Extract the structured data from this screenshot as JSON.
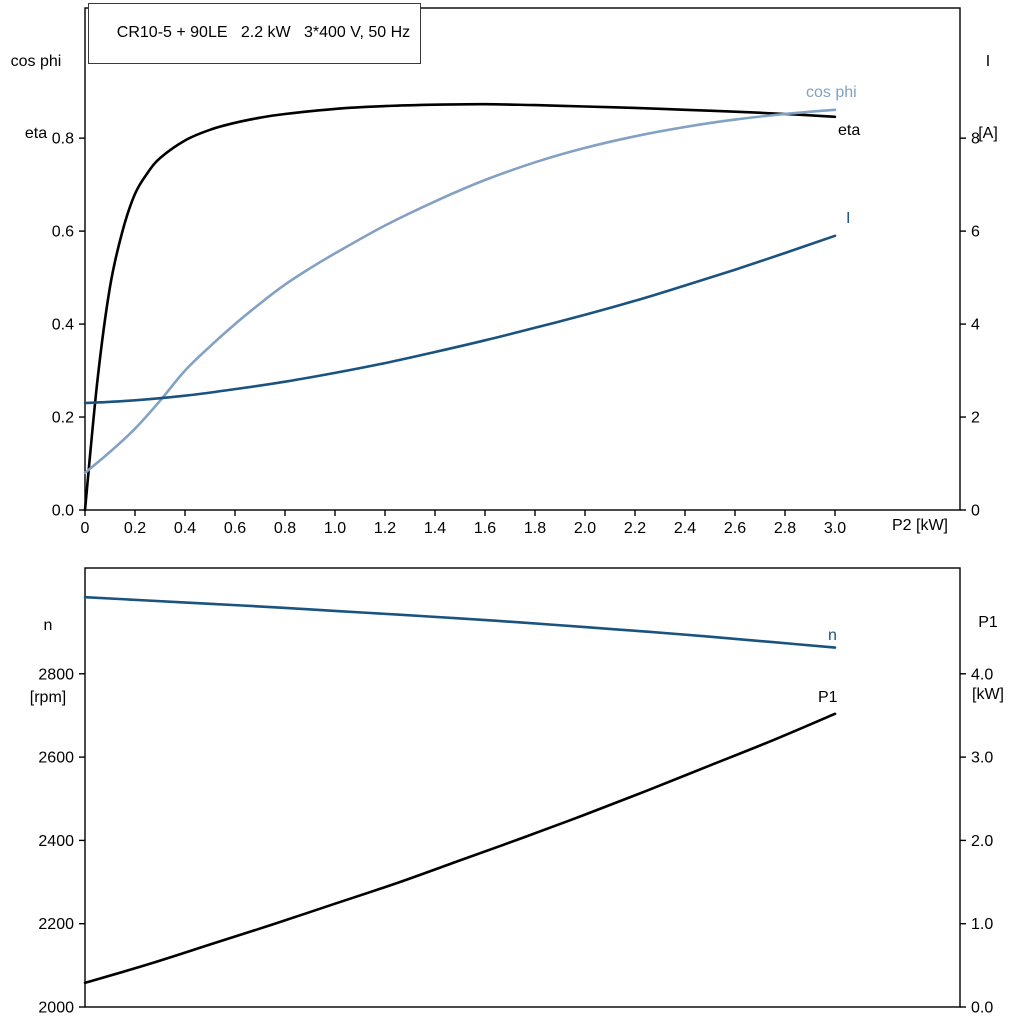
{
  "title": "CR10-5 + 90LE   2.2 kW   3*400 V, 50 Hz",
  "colors": {
    "frame": "#000000",
    "black_curve": "#000000",
    "light_blue_curve": "#82a1c3",
    "dark_blue_curve": "#1a5380"
  },
  "chart_data": [
    {
      "name": "motor-top-chart",
      "type": "line",
      "x_label": "P2 [kW]",
      "x_range": [
        0,
        3.5
      ],
      "grid": false,
      "legend_position": "curve-end-labels",
      "x_ticks": [
        {
          "v": 0,
          "label": "0"
        },
        {
          "v": 0.2,
          "label": "0.2"
        },
        {
          "v": 0.4,
          "label": "0.4"
        },
        {
          "v": 0.6,
          "label": "0.6"
        },
        {
          "v": 0.8,
          "label": "0.8"
        },
        {
          "v": 1.0,
          "label": "1.0"
        },
        {
          "v": 1.2,
          "label": "1.2"
        },
        {
          "v": 1.4,
          "label": "1.4"
        },
        {
          "v": 1.6,
          "label": "1.6"
        },
        {
          "v": 1.8,
          "label": "1.8"
        },
        {
          "v": 2.0,
          "label": "2.0"
        },
        {
          "v": 2.2,
          "label": "2.2"
        },
        {
          "v": 2.4,
          "label": "2.4"
        },
        {
          "v": 2.6,
          "label": "2.6"
        },
        {
          "v": 2.8,
          "label": "2.8"
        },
        {
          "v": 3.0,
          "label": "3.0"
        }
      ],
      "left_axis": {
        "title_lines": [
          "cos phi",
          "eta"
        ],
        "range": [
          0,
          1.08
        ],
        "ticks": [
          {
            "v": 0,
            "label": "0.0"
          },
          {
            "v": 0.2,
            "label": "0.2"
          },
          {
            "v": 0.4,
            "label": "0.4"
          },
          {
            "v": 0.6,
            "label": "0.6"
          },
          {
            "v": 0.8,
            "label": "0.8"
          }
        ]
      },
      "right_axis": {
        "title_lines": [
          "I",
          "[A]"
        ],
        "range": [
          0,
          10.8
        ],
        "ticks": [
          {
            "v": 0,
            "label": "0"
          },
          {
            "v": 2,
            "label": "2"
          },
          {
            "v": 4,
            "label": "4"
          },
          {
            "v": 6,
            "label": "6"
          },
          {
            "v": 8,
            "label": "8"
          }
        ]
      },
      "series": [
        {
          "name": "eta",
          "label": "eta",
          "axis": "left",
          "color": "#000000",
          "points": [
            [
              0,
              0
            ],
            [
              0.05,
              0.28
            ],
            [
              0.1,
              0.48
            ],
            [
              0.15,
              0.6
            ],
            [
              0.2,
              0.68
            ],
            [
              0.25,
              0.725
            ],
            [
              0.3,
              0.757
            ],
            [
              0.4,
              0.795
            ],
            [
              0.5,
              0.818
            ],
            [
              0.6,
              0.833
            ],
            [
              0.7,
              0.844
            ],
            [
              0.8,
              0.852
            ],
            [
              1.0,
              0.863
            ],
            [
              1.2,
              0.869
            ],
            [
              1.4,
              0.872
            ],
            [
              1.6,
              0.873
            ],
            [
              1.8,
              0.871
            ],
            [
              2.0,
              0.868
            ],
            [
              2.2,
              0.865
            ],
            [
              2.4,
              0.861
            ],
            [
              2.6,
              0.857
            ],
            [
              2.8,
              0.852
            ],
            [
              3.0,
              0.846
            ]
          ]
        },
        {
          "name": "cos-phi",
          "label": "cos phi",
          "axis": "left",
          "color": "#82a1c3",
          "points": [
            [
              0,
              0.08
            ],
            [
              0.1,
              0.125
            ],
            [
              0.2,
              0.175
            ],
            [
              0.3,
              0.235
            ],
            [
              0.4,
              0.3
            ],
            [
              0.5,
              0.352
            ],
            [
              0.6,
              0.4
            ],
            [
              0.7,
              0.444
            ],
            [
              0.8,
              0.485
            ],
            [
              0.9,
              0.52
            ],
            [
              1.0,
              0.552
            ],
            [
              1.2,
              0.612
            ],
            [
              1.4,
              0.664
            ],
            [
              1.6,
              0.71
            ],
            [
              1.8,
              0.748
            ],
            [
              2.0,
              0.779
            ],
            [
              2.2,
              0.804
            ],
            [
              2.4,
              0.824
            ],
            [
              2.6,
              0.84
            ],
            [
              2.8,
              0.852
            ],
            [
              3.0,
              0.861
            ]
          ]
        },
        {
          "name": "current",
          "label": "I",
          "axis": "right",
          "color": "#1a5380",
          "points": [
            [
              0,
              2.3
            ],
            [
              0.2,
              2.36
            ],
            [
              0.4,
              2.46
            ],
            [
              0.6,
              2.6
            ],
            [
              0.8,
              2.76
            ],
            [
              1.0,
              2.95
            ],
            [
              1.2,
              3.16
            ],
            [
              1.4,
              3.4
            ],
            [
              1.6,
              3.65
            ],
            [
              1.8,
              3.92
            ],
            [
              2.0,
              4.2
            ],
            [
              2.2,
              4.5
            ],
            [
              2.4,
              4.83
            ],
            [
              2.6,
              5.17
            ],
            [
              2.8,
              5.53
            ],
            [
              3.0,
              5.9
            ]
          ]
        }
      ]
    },
    {
      "name": "motor-bottom-chart",
      "type": "line",
      "x_label": "",
      "x_range": [
        0,
        3.5
      ],
      "grid": false,
      "legend_position": "curve-end-labels",
      "x_ticks": [],
      "left_axis": {
        "title_lines": [
          "n",
          "[rpm]"
        ],
        "range": [
          2000,
          3054
        ],
        "ticks": [
          {
            "v": 2000,
            "label": "2000"
          },
          {
            "v": 2200,
            "label": "2200"
          },
          {
            "v": 2400,
            "label": "2400"
          },
          {
            "v": 2600,
            "label": "2600"
          },
          {
            "v": 2800,
            "label": "2800"
          }
        ]
      },
      "right_axis": {
        "title_lines": [
          "P1",
          "[kW]"
        ],
        "range": [
          0,
          5.27
        ],
        "ticks": [
          {
            "v": 0,
            "label": "0.0"
          },
          {
            "v": 1,
            "label": "1.0"
          },
          {
            "v": 2,
            "label": "2.0"
          },
          {
            "v": 3,
            "label": "3.0"
          },
          {
            "v": 4,
            "label": "4.0"
          }
        ]
      },
      "series": [
        {
          "name": "speed",
          "label": "n",
          "axis": "left",
          "color": "#1a5380",
          "points": [
            [
              0,
              2984
            ],
            [
              0.25,
              2976
            ],
            [
              0.5,
              2968
            ],
            [
              0.75,
              2960
            ],
            [
              1.0,
              2951
            ],
            [
              1.25,
              2942
            ],
            [
              1.5,
              2933
            ],
            [
              1.75,
              2923
            ],
            [
              2.0,
              2912
            ],
            [
              2.25,
              2901
            ],
            [
              2.5,
              2889
            ],
            [
              2.75,
              2876
            ],
            [
              3.0,
              2863
            ]
          ]
        },
        {
          "name": "input-power",
          "label": "P1",
          "axis": "right",
          "color": "#000000",
          "points": [
            [
              0,
              0.29
            ],
            [
              0.25,
              0.51
            ],
            [
              0.5,
              0.75
            ],
            [
              0.75,
              0.99
            ],
            [
              1.0,
              1.24
            ],
            [
              1.25,
              1.49
            ],
            [
              1.5,
              1.76
            ],
            [
              1.75,
              2.03
            ],
            [
              2.0,
              2.31
            ],
            [
              2.25,
              2.6
            ],
            [
              2.5,
              2.9
            ],
            [
              2.75,
              3.2
            ],
            [
              3.0,
              3.52
            ]
          ]
        }
      ]
    }
  ]
}
